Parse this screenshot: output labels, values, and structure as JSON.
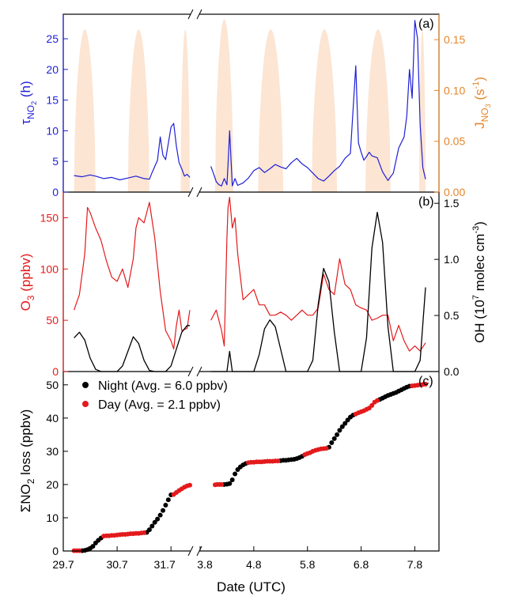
{
  "chart_data": [
    {
      "panel": "(a)",
      "type": "line",
      "ylabel_left": {
        "main": "τ",
        "sub": "NO",
        "sub2": "2",
        "unit": " (h)"
      },
      "ylabel_right": {
        "main": "J",
        "sub": "NO",
        "sub2": "3",
        "unit_pre": " (s",
        "unit_sup": "-1",
        "unit_post": ")"
      },
      "ylim_left": [
        0,
        29
      ],
      "ylim_right": [
        0,
        0.175
      ],
      "yticks_left": [
        "0",
        "5",
        "10",
        "15",
        "20",
        "25"
      ],
      "yticks_right": [
        "0.00",
        "0.05",
        "0.10",
        "0.15"
      ],
      "colors": {
        "tau": "#1f1fd6",
        "jno3": "#fce5d3",
        "axis_left": "#1f1fd6",
        "axis_right": "#e5862a"
      },
      "jno3_day_peaks": [
        {
          "start": 29.9,
          "end": 30.3,
          "peak": 0.16
        },
        {
          "start": 30.9,
          "end": 31.3,
          "peak": 0.16
        },
        {
          "start": 31.88,
          "end": 32.05,
          "peak": 0.16
        },
        {
          "start": 4.08,
          "end": 4.42,
          "peak": 0.17
        },
        {
          "start": 4.88,
          "end": 5.35,
          "peak": 0.16
        },
        {
          "start": 5.88,
          "end": 6.35,
          "peak": 0.16
        },
        {
          "start": 6.88,
          "end": 7.35,
          "peak": 0.16
        },
        {
          "start": 7.88,
          "end": 8.0,
          "peak": 0.16
        }
      ],
      "series": [
        {
          "name": "τNO2",
          "x": [
            29.9,
            30.05,
            30.2,
            30.3,
            30.45,
            30.6,
            30.75,
            30.9,
            31.05,
            31.2,
            31.3,
            31.35,
            31.45,
            31.5,
            31.55,
            31.6,
            31.7,
            31.75,
            31.8,
            31.85,
            31.9,
            31.95,
            32.0,
            32.05
          ],
          "y": [
            2.7,
            2.5,
            2.8,
            2.6,
            2.2,
            2.4,
            2.0,
            2.3,
            2.6,
            2.2,
            2.1,
            3.2,
            5.2,
            9.0,
            6.0,
            5.3,
            10.6,
            11.2,
            7.5,
            4.8,
            3.8,
            2.6,
            2.9,
            2.4
          ]
        },
        {
          "name": "τNO2",
          "x": [
            4.0,
            4.05,
            4.1,
            4.15,
            4.2,
            4.25,
            4.3,
            4.32,
            4.35,
            4.4,
            4.45,
            4.5,
            4.6,
            4.7,
            4.8,
            4.9,
            5.0,
            5.1,
            5.2,
            5.3,
            5.4,
            5.5,
            5.6,
            5.7,
            5.8,
            5.9,
            6.0,
            6.1,
            6.2,
            6.3,
            6.4,
            6.5,
            6.6,
            6.7,
            6.75,
            6.8,
            6.85,
            6.9,
            6.95,
            7.0,
            7.1,
            7.2,
            7.3,
            7.4,
            7.5,
            7.6,
            7.65,
            7.7,
            7.75,
            7.8,
            7.85,
            7.9,
            7.95,
            8.0
          ],
          "y": [
            4.2,
            3.0,
            1.7,
            1.2,
            1.0,
            2.2,
            1.2,
            4.5,
            10.0,
            1.0,
            2.2,
            1.1,
            1.5,
            2.3,
            3.5,
            4.0,
            3.2,
            3.8,
            4.5,
            4.1,
            3.8,
            4.8,
            5.5,
            4.6,
            4.0,
            3.1,
            2.2,
            1.8,
            2.6,
            3.5,
            4.2,
            5.5,
            6.3,
            20.6,
            8.0,
            6.5,
            5.2,
            5.8,
            6.5,
            5.9,
            5.6,
            3.3,
            1.9,
            3.1,
            7.2,
            9.0,
            12.4,
            20.0,
            15.3,
            28.0,
            25.0,
            11.0,
            4.0,
            2.1
          ]
        }
      ]
    },
    {
      "panel": "(b)",
      "type": "line",
      "ylabel_left": {
        "main": "O",
        "sub": "3",
        "unit": " (ppbv)"
      },
      "ylabel_right": {
        "main": "OH (10",
        "sup": "7",
        "unit": " molec cm",
        "unit_sup": "-3",
        "unit_post": ")"
      },
      "ylim_left": [
        0,
        175
      ],
      "ylim_right": [
        0,
        1.6
      ],
      "yticks_left": [
        "0",
        "50",
        "100",
        "150"
      ],
      "yticks_right": [
        "0.0",
        "0.5",
        "1.0",
        "1.5"
      ],
      "colors": {
        "o3": "#e31a1c",
        "oh": "#000000"
      },
      "series": [
        {
          "name": "O3",
          "x": [
            29.9,
            30.0,
            30.1,
            30.15,
            30.2,
            30.3,
            30.4,
            30.5,
            30.6,
            30.7,
            30.8,
            30.9,
            31.0,
            31.05,
            31.1,
            31.2,
            31.3,
            31.4,
            31.5,
            31.6,
            31.7,
            31.75,
            31.8,
            31.85,
            31.9,
            32.0,
            32.05
          ],
          "y": [
            60,
            75,
            115,
            160,
            155,
            140,
            128,
            108,
            92,
            88,
            100,
            82,
            110,
            140,
            150,
            145,
            165,
            130,
            78,
            40,
            30,
            22,
            45,
            60,
            40,
            42,
            60
          ]
        },
        {
          "name": "O3",
          "x": [
            4.0,
            4.1,
            4.2,
            4.25,
            4.3,
            4.32,
            4.35,
            4.4,
            4.45,
            4.5,
            4.6,
            4.7,
            4.8,
            4.9,
            5.0,
            5.1,
            5.2,
            5.3,
            5.4,
            5.5,
            5.6,
            5.7,
            5.8,
            5.9,
            6.0,
            6.1,
            6.2,
            6.3,
            6.4,
            6.5,
            6.6,
            6.7,
            6.8,
            6.9,
            7.0,
            7.1,
            7.2,
            7.3,
            7.4,
            7.5,
            7.6,
            7.7,
            7.8,
            7.9,
            8.0
          ],
          "y": [
            50,
            60,
            40,
            25,
            130,
            160,
            170,
            140,
            150,
            115,
            70,
            75,
            80,
            65,
            65,
            55,
            55,
            58,
            55,
            50,
            55,
            60,
            55,
            55,
            62,
            95,
            80,
            75,
            110,
            85,
            80,
            65,
            62,
            60,
            50,
            52,
            55,
            55,
            30,
            45,
            30,
            20,
            25,
            20,
            28
          ]
        },
        {
          "name": "OH",
          "x": [
            29.9,
            30.0,
            30.1,
            30.2,
            30.3,
            30.4,
            30.5,
            30.6,
            30.7,
            30.8,
            30.9,
            31.0,
            31.1,
            31.2,
            31.3,
            31.4,
            31.5,
            31.6,
            31.7,
            31.8,
            31.9,
            32.0,
            32.05
          ],
          "y": [
            0.3,
            0.35,
            0.28,
            0.12,
            0.02,
            0,
            0,
            0,
            0,
            0.05,
            0.18,
            0.31,
            0.25,
            0.1,
            0.01,
            0,
            0,
            0,
            0.05,
            0.2,
            0.35,
            0.41,
            0.41
          ]
        },
        {
          "name": "OH",
          "x": [
            4.0,
            4.1,
            4.2,
            4.3,
            4.35,
            4.4,
            4.5,
            4.6,
            4.7,
            4.8,
            4.9,
            5.0,
            5.1,
            5.2,
            5.3,
            5.4,
            5.5,
            5.6,
            5.7,
            5.8,
            5.9,
            6.0,
            6.1,
            6.2,
            6.3,
            6.4,
            6.5,
            6.6,
            6.7,
            6.8,
            6.9,
            7.0,
            7.1,
            7.2,
            7.3,
            7.4,
            7.5,
            7.6,
            7.7,
            7.8,
            7.9,
            8.0
          ],
          "y": [
            0,
            0,
            0,
            0,
            0.18,
            0,
            0,
            0,
            0,
            0,
            0.15,
            0.38,
            0.46,
            0.4,
            0.2,
            0,
            0,
            0,
            0,
            0,
            0.1,
            0.6,
            0.92,
            0.8,
            0.35,
            0,
            0,
            0,
            0,
            0,
            0.3,
            1.1,
            1.42,
            1.15,
            0.4,
            0,
            0,
            0,
            0,
            0,
            0.1,
            0.75
          ]
        }
      ]
    },
    {
      "panel": "(c)",
      "type": "scatter",
      "ylabel": "ΣNO",
      "ylabel_sub": "2",
      "ylabel_unit": " loss (ppbv)",
      "ylim": [
        0,
        54
      ],
      "yticks": [
        "0",
        "10",
        "20",
        "30",
        "40",
        "50"
      ],
      "xlabel": "Date (UTC)",
      "xticks": [
        "29.7",
        "30.7",
        "31.7",
        "3.8",
        "4.8",
        "5.8",
        "6.8",
        "7.8"
      ],
      "legend": [
        {
          "label": "Night (Avg. = 6.0 ppbv)",
          "color": "#000000"
        },
        {
          "label": "Day (Avg. = 2.1 ppbv)",
          "color": "#e31a1c"
        }
      ],
      "series": [
        {
          "name": "Night",
          "x": [
            30.05,
            30.1,
            30.15,
            30.2,
            30.25,
            30.3,
            30.35,
            30.4,
            31.25,
            31.3,
            31.35,
            31.4,
            31.45,
            31.5,
            31.55,
            31.6,
            31.65,
            31.7,
            4.25,
            4.3,
            4.35,
            4.4,
            4.45,
            4.5,
            4.55,
            4.6,
            4.65,
            5.3,
            5.35,
            5.4,
            5.45,
            5.5,
            5.55,
            5.6,
            5.65,
            5.7,
            6.2,
            6.25,
            6.3,
            6.35,
            6.4,
            6.45,
            6.5,
            6.55,
            6.6,
            6.65,
            7.15,
            7.2,
            7.25,
            7.3,
            7.35,
            7.4,
            7.45,
            7.5,
            7.55,
            7.6,
            7.65,
            7.7
          ],
          "y": [
            0.1,
            0.2,
            0.4,
            0.8,
            1.4,
            2.4,
            3.2,
            3.9,
            5.6,
            6.4,
            7.5,
            8.6,
            9.6,
            10.8,
            12.2,
            13.8,
            15.4,
            16.9,
            20.0,
            20.1,
            20.3,
            21.4,
            23.2,
            24.5,
            25.3,
            25.9,
            26.3,
            27.2,
            27.3,
            27.3,
            27.4,
            27.5,
            27.6,
            27.8,
            28.1,
            28.5,
            31.2,
            32.6,
            33.8,
            35.0,
            36.3,
            37.4,
            38.4,
            39.4,
            40.3,
            40.9,
            45.6,
            46.0,
            46.4,
            46.8,
            47.1,
            47.4,
            47.7,
            48.1,
            48.5,
            48.9,
            49.3,
            49.6
          ]
        },
        {
          "name": "Day",
          "x": [
            29.9,
            29.95,
            30.0,
            30.45,
            30.5,
            30.55,
            30.6,
            30.65,
            30.7,
            30.75,
            30.8,
            30.85,
            30.9,
            30.95,
            31.0,
            31.05,
            31.1,
            31.15,
            31.2,
            31.75,
            31.8,
            31.85,
            31.9,
            31.95,
            32.0,
            32.05,
            4.08,
            4.12,
            4.16,
            4.2,
            4.7,
            4.75,
            4.8,
            4.85,
            4.9,
            4.95,
            5.0,
            5.05,
            5.1,
            5.15,
            5.2,
            5.25,
            5.75,
            5.8,
            5.85,
            5.9,
            5.95,
            6.0,
            6.05,
            6.1,
            6.15,
            6.7,
            6.75,
            6.8,
            6.85,
            6.9,
            6.95,
            7.0,
            7.05,
            7.1,
            7.75,
            7.8,
            7.85,
            7.9,
            7.95,
            8.0
          ],
          "y": [
            0.1,
            0.1,
            0.1,
            4.5,
            4.6,
            4.6,
            4.7,
            4.7,
            4.8,
            4.9,
            5.0,
            5.0,
            5.1,
            5.2,
            5.2,
            5.3,
            5.3,
            5.4,
            5.5,
            17.0,
            17.6,
            18.2,
            18.7,
            19.2,
            19.6,
            19.8,
            19.9,
            20.0,
            20.0,
            20.0,
            26.6,
            26.7,
            26.7,
            26.8,
            26.8,
            26.8,
            26.9,
            27.0,
            27.0,
            27.0,
            27.1,
            27.1,
            29.0,
            29.3,
            29.6,
            30.0,
            30.3,
            30.5,
            30.7,
            30.8,
            30.9,
            41.2,
            41.6,
            41.9,
            42.2,
            42.6,
            43.0,
            43.8,
            44.8,
            45.3,
            49.7,
            49.8,
            49.9,
            50.0,
            50.1,
            50.2
          ]
        }
      ]
    }
  ]
}
